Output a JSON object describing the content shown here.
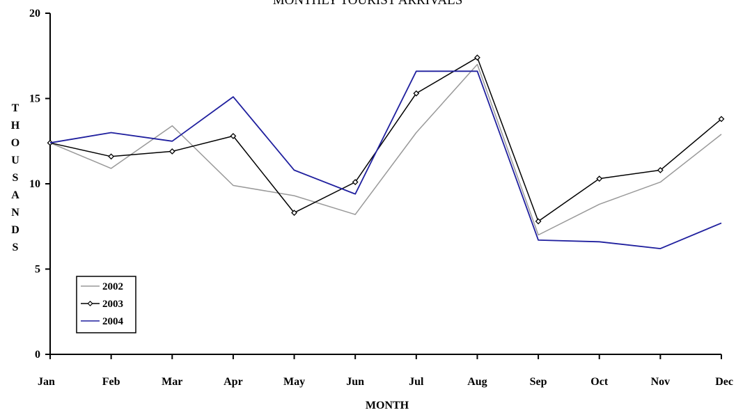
{
  "chart_data": {
    "type": "line",
    "title": "MONTHLY TOURIST ARRIVALS",
    "xlabel": "MONTH",
    "ylabel": "THOUSANDS",
    "ylabel_letters": [
      "T",
      "H",
      "O",
      "U",
      "S",
      "A",
      "N",
      "D",
      "S"
    ],
    "categories": [
      "Jan",
      "Feb",
      "Mar",
      "Apr",
      "May",
      "Jun",
      "Jul",
      "Aug",
      "Sep",
      "Oct",
      "Nov",
      "Dec"
    ],
    "ylim": [
      0,
      20
    ],
    "yticks": [
      0,
      5,
      10,
      15,
      20
    ],
    "grid": false,
    "legend_position": "bottom-left",
    "series": [
      {
        "name": "2002",
        "color": "#999999",
        "marker": "none",
        "values": [
          12.4,
          10.9,
          13.4,
          9.9,
          9.3,
          8.2,
          13.0,
          17.0,
          7.0,
          8.8,
          10.1,
          12.9
        ]
      },
      {
        "name": "2003",
        "color": "#000000",
        "marker": "diamond",
        "values": [
          12.4,
          11.6,
          11.9,
          12.8,
          8.3,
          10.1,
          15.3,
          17.4,
          7.8,
          10.3,
          10.8,
          13.8
        ]
      },
      {
        "name": "2004",
        "color": "#1f1f9e",
        "marker": "none",
        "values": [
          12.4,
          13.0,
          12.5,
          15.1,
          10.8,
          9.4,
          16.6,
          16.6,
          6.7,
          6.6,
          6.2,
          7.7
        ]
      }
    ]
  }
}
